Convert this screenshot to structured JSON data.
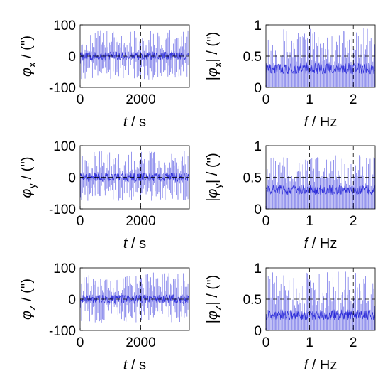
{
  "chart_data": [
    {
      "type": "line",
      "ylabel_sym": "φ",
      "ylabel_sub": "x",
      "ylabel_pre": "",
      "ylabel_post": " / ('')",
      "xlabel_var": "t",
      "xlabel_unit": " / s",
      "xlim": [
        0,
        3600
      ],
      "ylim": [
        -100,
        100
      ],
      "xticks": [
        "0",
        "2000"
      ],
      "xtick_values": [
        0,
        2000
      ],
      "yticks": [
        "100",
        "0",
        "-100"
      ],
      "ytick_values": [
        100,
        0,
        -100
      ],
      "grid": true,
      "signal": {
        "amp_pos": 85,
        "amp_neg": 75,
        "center": 0
      }
    },
    {
      "type": "line",
      "ylabel_sym": "φ",
      "ylabel_sub": "x",
      "ylabel_pre": "|",
      "ylabel_post": "| / ('')",
      "xlabel_var": "f",
      "xlabel_unit": " / Hz",
      "xlim": [
        0,
        2.5
      ],
      "ylim": [
        0,
        1
      ],
      "xticks": [
        "0",
        "1",
        "2"
      ],
      "xtick_values": [
        0,
        1,
        2
      ],
      "yticks": [
        "1",
        "0.5",
        "0"
      ],
      "ytick_values": [
        1,
        0.5,
        0
      ],
      "grid": true,
      "signal": {
        "amp_pos": 0.95,
        "amp_neg": 0,
        "center": 0.3
      }
    },
    {
      "type": "line",
      "ylabel_sym": "φ",
      "ylabel_sub": "y",
      "ylabel_pre": "",
      "ylabel_post": " / ('')",
      "xlabel_var": "t",
      "xlabel_unit": " / s",
      "xlim": [
        0,
        3600
      ],
      "ylim": [
        -100,
        100
      ],
      "xticks": [
        "0",
        "2000"
      ],
      "xtick_values": [
        0,
        2000
      ],
      "yticks": [
        "100",
        "0",
        "-100"
      ],
      "ytick_values": [
        100,
        0,
        -100
      ],
      "grid": true,
      "signal": {
        "amp_pos": 85,
        "amp_neg": 75,
        "center": 0
      }
    },
    {
      "type": "line",
      "ylabel_sym": "φ",
      "ylabel_sub": "y",
      "ylabel_pre": "|",
      "ylabel_post": "| / ('')",
      "xlabel_var": "f",
      "xlabel_unit": " / Hz",
      "xlim": [
        0,
        2.5
      ],
      "ylim": [
        0,
        1
      ],
      "xticks": [
        "0",
        "1",
        "2"
      ],
      "xtick_values": [
        0,
        1,
        2
      ],
      "yticks": [
        "1",
        "0.5",
        "0"
      ],
      "ytick_values": [
        1,
        0.5,
        0
      ],
      "grid": true,
      "signal": {
        "amp_pos": 0.85,
        "amp_neg": 0,
        "center": 0.3
      }
    },
    {
      "type": "line",
      "ylabel_sym": "φ",
      "ylabel_sub": "z",
      "ylabel_pre": "",
      "ylabel_post": " / ('')",
      "xlabel_var": "t",
      "xlabel_unit": " / s",
      "xlim": [
        0,
        3600
      ],
      "ylim": [
        -100,
        100
      ],
      "xticks": [
        "0",
        "2000"
      ],
      "xtick_values": [
        0,
        2000
      ],
      "yticks": [
        "100",
        "0",
        "-100"
      ],
      "ytick_values": [
        100,
        0,
        -100
      ],
      "grid": true,
      "signal": {
        "amp_pos": 85,
        "amp_neg": 75,
        "center": 0
      }
    },
    {
      "type": "line",
      "ylabel_sym": "φ",
      "ylabel_sub": "z",
      "ylabel_pre": "|",
      "ylabel_post": "| / ('')",
      "xlabel_var": "f",
      "xlabel_unit": " / Hz",
      "xlim": [
        0,
        2.5
      ],
      "ylim": [
        0,
        1
      ],
      "xticks": [
        "0",
        "1",
        "2"
      ],
      "xtick_values": [
        0,
        1,
        2
      ],
      "yticks": [
        "1",
        "0.5",
        "0"
      ],
      "ytick_values": [
        1,
        0.5,
        0
      ],
      "grid": true,
      "signal": {
        "amp_pos": 0.95,
        "amp_neg": 0,
        "center": 0.25
      }
    }
  ]
}
